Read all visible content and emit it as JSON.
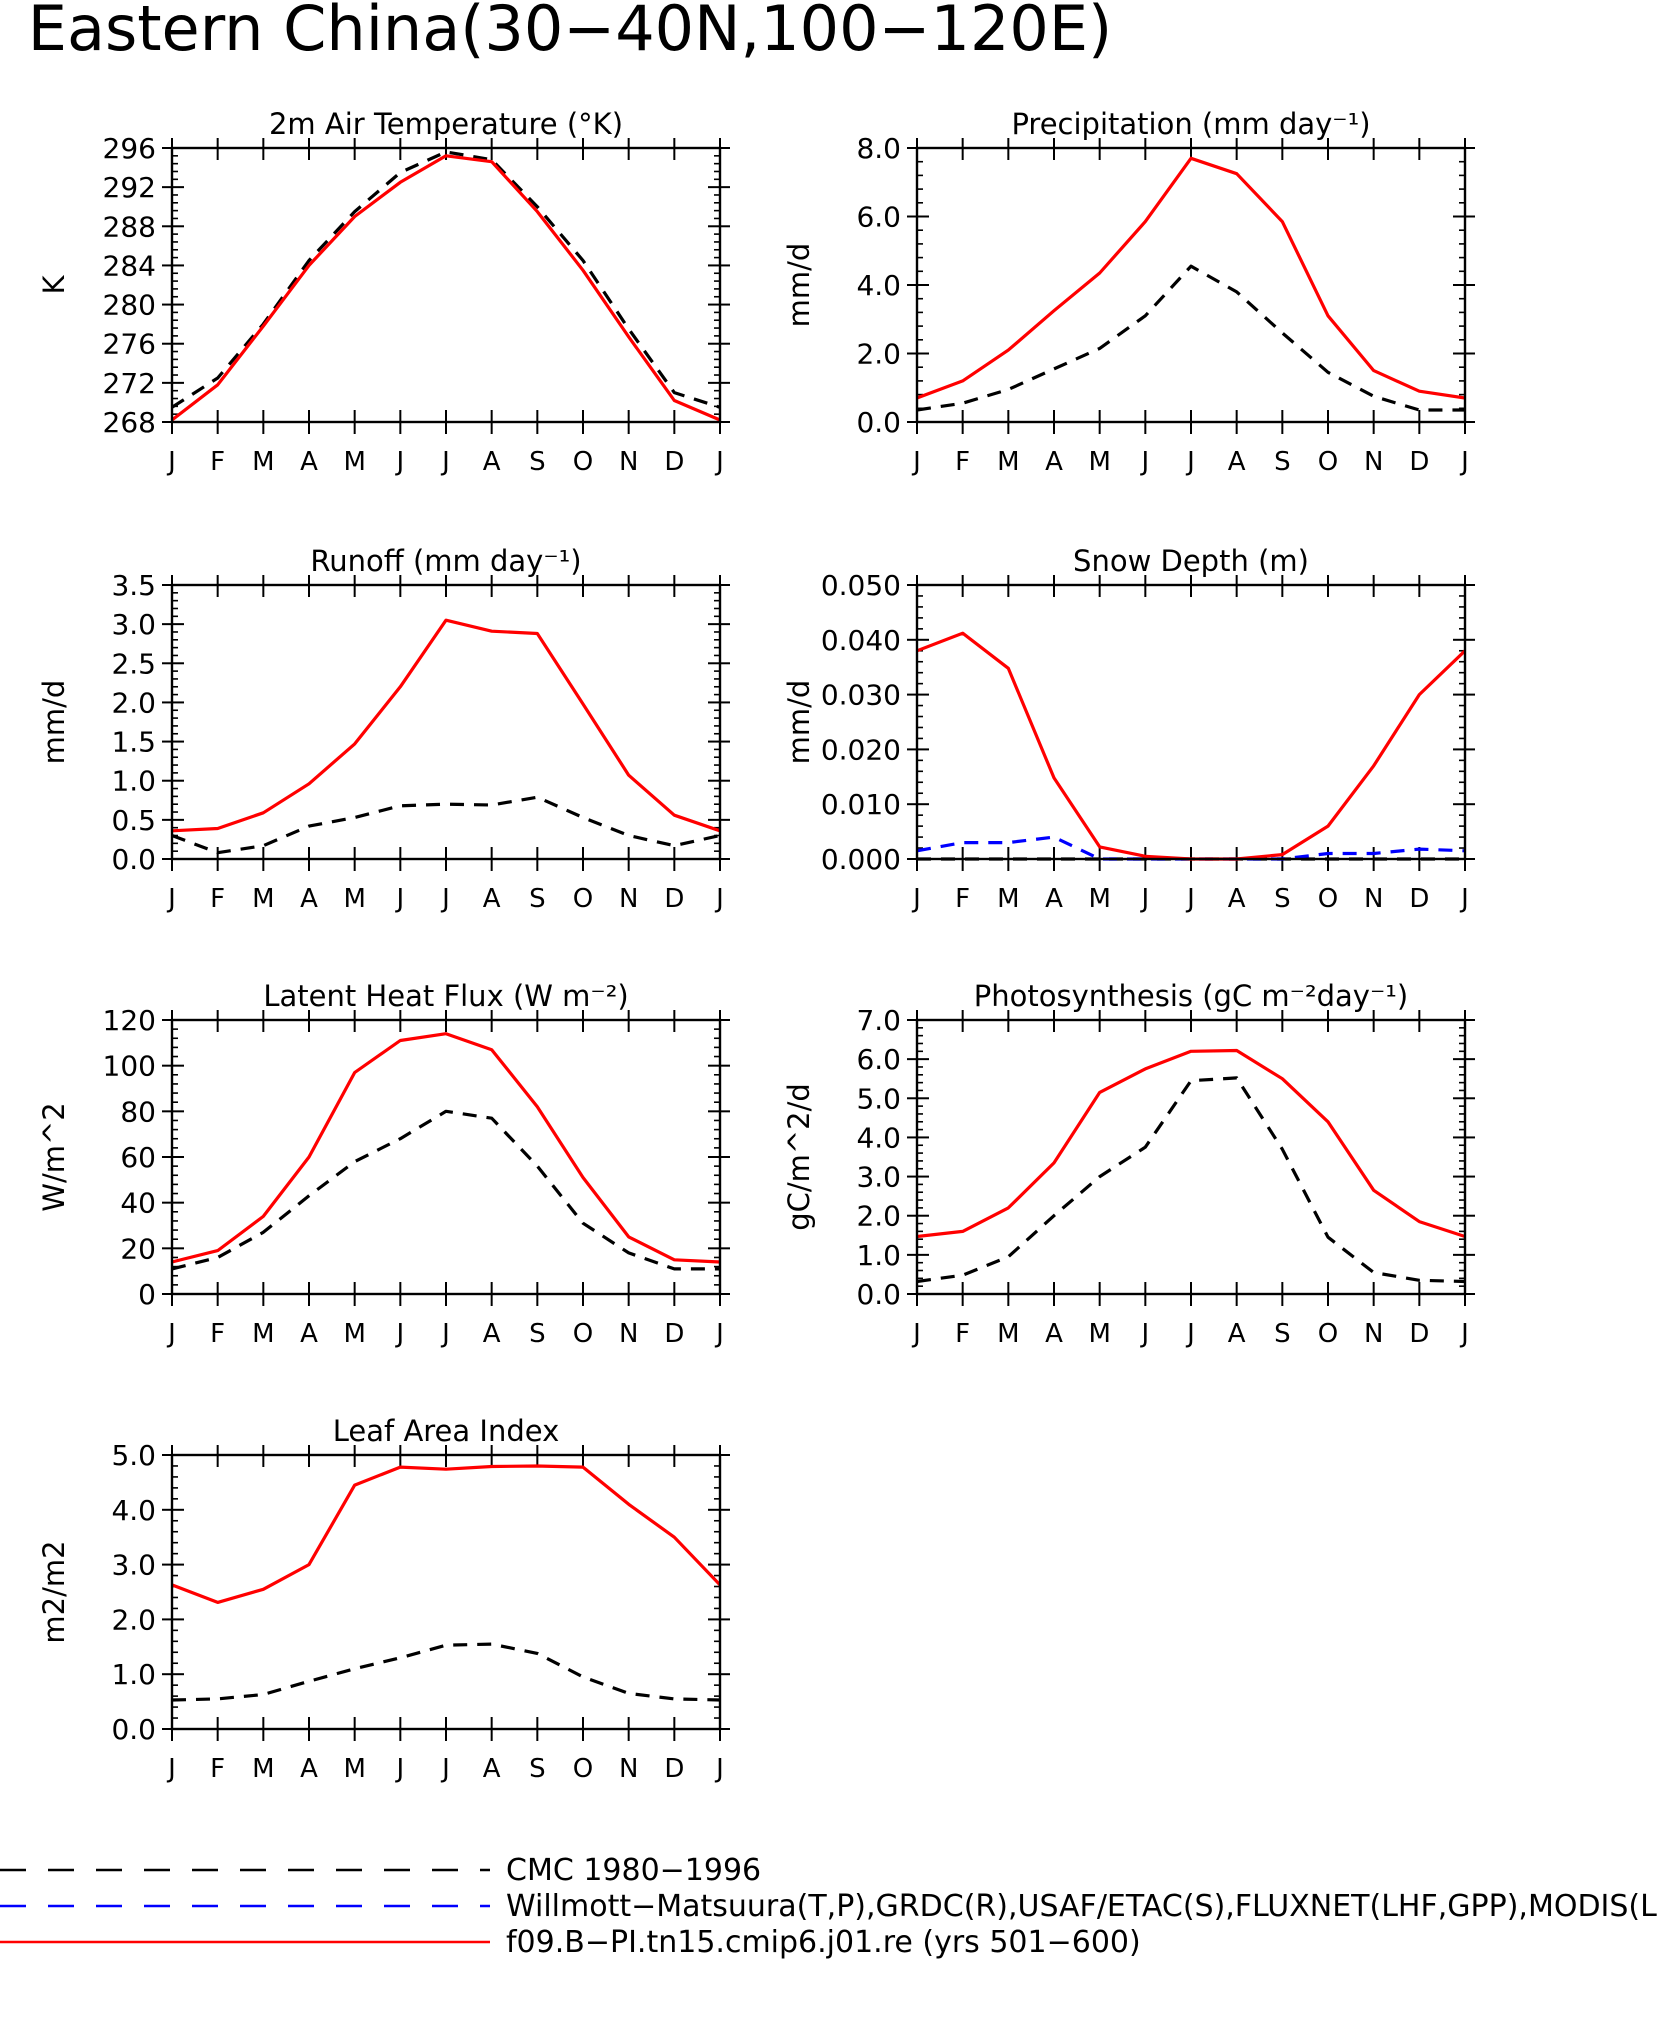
{
  "figure_title": "Eastern China(30−40N,100−120E)",
  "months": [
    "J",
    "F",
    "M",
    "A",
    "M",
    "J",
    "J",
    "A",
    "S",
    "O",
    "N",
    "D",
    "J"
  ],
  "legend": [
    {
      "label": "CMC 1980−1996",
      "color": "#000000",
      "style": "dashed"
    },
    {
      "label": "Willmott−Matsuura(T,P),GRDC(R),USAF/ETAC(S),FLUXNET(LHF,GPP),MODIS(L",
      "color": "#0000ff",
      "style": "dashed"
    },
    {
      "label": "f09.B−PI.tn15.cmip6.j01.re (yrs 501−600)",
      "color": "#ff0000",
      "style": "solid"
    }
  ],
  "colors": {
    "model": "#ff0000",
    "cmc": "#000000",
    "obs": "#0000ff"
  },
  "chart_data": [
    {
      "type": "line",
      "title": "2m Air Temperature (°K)",
      "ylabel": "K",
      "ylim": [
        268,
        296
      ],
      "yticks": [
        268,
        272,
        276,
        280,
        284,
        288,
        292,
        296
      ],
      "ytick_labels": [
        "268",
        "272",
        "276",
        "280",
        "284",
        "288",
        "292",
        "296"
      ],
      "x": [
        "J",
        "F",
        "M",
        "A",
        "M",
        "J",
        "J",
        "A",
        "S",
        "O",
        "N",
        "D",
        "J"
      ],
      "series": [
        {
          "name": "CMC 1980−1996",
          "style": "dashed",
          "color": "#000000",
          "values": [
            269.5,
            272.5,
            278.0,
            284.5,
            289.5,
            293.5,
            295.6,
            294.8,
            290.0,
            284.5,
            277.5,
            271.0,
            269.5
          ]
        },
        {
          "name": "f09.B−PI.tn15.cmip6.j01.re (yrs 501−600)",
          "style": "solid",
          "color": "#ff0000",
          "values": [
            268.2,
            271.8,
            277.8,
            284.0,
            289.0,
            292.5,
            295.2,
            294.6,
            289.5,
            283.5,
            276.7,
            270.2,
            268.2
          ]
        }
      ]
    },
    {
      "type": "line",
      "title": "Precipitation (mm day⁻¹)",
      "ylabel": "mm/d",
      "ylim": [
        0,
        8
      ],
      "yticks": [
        0,
        2,
        4,
        6,
        8
      ],
      "ytick_labels": [
        "0.0",
        "2.0",
        "4.0",
        "6.0",
        "8.0"
      ],
      "x": [
        "J",
        "F",
        "M",
        "A",
        "M",
        "J",
        "J",
        "A",
        "S",
        "O",
        "N",
        "D",
        "J"
      ],
      "series": [
        {
          "name": "CMC 1980−1996",
          "style": "dashed",
          "color": "#000000",
          "values": [
            0.35,
            0.55,
            0.95,
            1.55,
            2.15,
            3.1,
            4.55,
            3.8,
            2.6,
            1.45,
            0.75,
            0.35,
            0.35
          ]
        },
        {
          "name": "f09.B−PI.tn15.cmip6.j01.re (yrs 501−600)",
          "style": "solid",
          "color": "#ff0000",
          "values": [
            0.7,
            1.2,
            2.1,
            3.25,
            4.35,
            5.85,
            7.7,
            7.25,
            5.85,
            3.1,
            1.5,
            0.9,
            0.7
          ]
        }
      ]
    },
    {
      "type": "line",
      "title": "Runoff (mm day⁻¹)",
      "ylabel": "mm/d",
      "ylim": [
        0,
        3.5
      ],
      "yticks": [
        0,
        0.5,
        1.0,
        1.5,
        2.0,
        2.5,
        3.0,
        3.5
      ],
      "ytick_labels": [
        "0.0",
        "0.5",
        "1.0",
        "1.5",
        "2.0",
        "2.5",
        "3.0",
        "3.5"
      ],
      "x": [
        "J",
        "F",
        "M",
        "A",
        "M",
        "J",
        "J",
        "A",
        "S",
        "O",
        "N",
        "D",
        "J"
      ],
      "series": [
        {
          "name": "CMC 1980−1996",
          "style": "dashed",
          "color": "#000000",
          "values": [
            0.3,
            0.08,
            0.17,
            0.42,
            0.53,
            0.68,
            0.7,
            0.69,
            0.79,
            0.53,
            0.3,
            0.17,
            0.3
          ]
        },
        {
          "name": "f09.B−PI.tn15.cmip6.j01.re (yrs 501−600)",
          "style": "solid",
          "color": "#ff0000",
          "values": [
            0.36,
            0.39,
            0.59,
            0.96,
            1.47,
            2.2,
            3.05,
            2.91,
            2.88,
            1.98,
            1.07,
            0.56,
            0.36
          ]
        }
      ]
    },
    {
      "type": "line",
      "title": "Snow Depth (m)",
      "ylabel": "mm/d",
      "ylim": [
        0,
        0.05
      ],
      "yticks": [
        0,
        0.01,
        0.02,
        0.03,
        0.04,
        0.05
      ],
      "ytick_labels": [
        "0.000",
        "0.010",
        "0.020",
        "0.030",
        "0.040",
        "0.050"
      ],
      "x": [
        "J",
        "F",
        "M",
        "A",
        "M",
        "J",
        "J",
        "A",
        "S",
        "O",
        "N",
        "D",
        "J"
      ],
      "series": [
        {
          "name": "CMC 1980−1996",
          "style": "dashed",
          "color": "#000000",
          "values": [
            0,
            0,
            0,
            0,
            0,
            0,
            0,
            0,
            0,
            0,
            0,
            0,
            0
          ]
        },
        {
          "name": "Willmott−Matsuura(T,P),GRDC(R),USAF/ETAC(S),FLUXNET(LHF,GPP),MODIS(L",
          "style": "dashed",
          "color": "#0000ff",
          "values": [
            0.0015,
            0.003,
            0.003,
            0.004,
            0,
            0,
            0,
            0,
            0,
            0.001,
            0.001,
            0.0018,
            0.0015
          ]
        },
        {
          "name": "f09.B−PI.tn15.cmip6.j01.re (yrs 501−600)",
          "style": "solid",
          "color": "#ff0000",
          "values": [
            0.038,
            0.0412,
            0.0348,
            0.0148,
            0.0022,
            0.0005,
            0,
            0,
            0.0008,
            0.006,
            0.017,
            0.03,
            0.038
          ]
        }
      ]
    },
    {
      "type": "line",
      "title": "Latent Heat Flux (W m⁻²)",
      "ylabel": "W/m^2",
      "ylim": [
        0,
        120
      ],
      "yticks": [
        0,
        20,
        40,
        60,
        80,
        100,
        120
      ],
      "ytick_labels": [
        "0",
        "20",
        "40",
        "60",
        "80",
        "100",
        "120"
      ],
      "x": [
        "J",
        "F",
        "M",
        "A",
        "M",
        "J",
        "J",
        "A",
        "S",
        "O",
        "N",
        "D",
        "J"
      ],
      "series": [
        {
          "name": "CMC 1980−1996",
          "style": "dashed",
          "color": "#000000",
          "values": [
            11,
            16,
            27,
            43,
            58,
            68,
            80,
            77,
            56,
            31,
            18,
            11,
            11
          ]
        },
        {
          "name": "f09.B−PI.tn15.cmip6.j01.re (yrs 501−600)",
          "style": "solid",
          "color": "#ff0000",
          "values": [
            14,
            19,
            34,
            60,
            97,
            111,
            114,
            107,
            82,
            51,
            25,
            15,
            14
          ]
        }
      ]
    },
    {
      "type": "line",
      "title": "Photosynthesis (gC m⁻²day⁻¹)",
      "ylabel": "gC/m^2/d",
      "ylim": [
        0,
        7
      ],
      "yticks": [
        0,
        1,
        2,
        3,
        4,
        5,
        6,
        7
      ],
      "ytick_labels": [
        "0.0",
        "1.0",
        "2.0",
        "3.0",
        "4.0",
        "5.0",
        "6.0",
        "7.0"
      ],
      "x": [
        "J",
        "F",
        "M",
        "A",
        "M",
        "J",
        "J",
        "A",
        "S",
        "O",
        "N",
        "D",
        "J"
      ],
      "series": [
        {
          "name": "CMC 1980−1996",
          "style": "dashed",
          "color": "#000000",
          "values": [
            0.32,
            0.48,
            0.95,
            2.0,
            3.0,
            3.75,
            5.45,
            5.52,
            3.7,
            1.45,
            0.55,
            0.35,
            0.32
          ]
        },
        {
          "name": "f09.B−PI.tn15.cmip6.j01.re (yrs 501−600)",
          "style": "solid",
          "color": "#ff0000",
          "values": [
            1.47,
            1.6,
            2.2,
            3.35,
            5.15,
            5.75,
            6.2,
            6.22,
            5.5,
            4.4,
            2.65,
            1.85,
            1.47
          ]
        }
      ]
    },
    {
      "type": "line",
      "title": "Leaf Area Index",
      "ylabel": "m2/m2",
      "ylim": [
        0,
        5
      ],
      "yticks": [
        0,
        1,
        2,
        3,
        4,
        5
      ],
      "ytick_labels": [
        "0.0",
        "1.0",
        "2.0",
        "3.0",
        "4.0",
        "5.0"
      ],
      "x": [
        "J",
        "F",
        "M",
        "A",
        "M",
        "J",
        "J",
        "A",
        "S",
        "O",
        "N",
        "D",
        "J"
      ],
      "series": [
        {
          "name": "CMC 1980−1996",
          "style": "dashed",
          "color": "#000000",
          "values": [
            0.53,
            0.55,
            0.63,
            0.87,
            1.1,
            1.3,
            1.53,
            1.55,
            1.38,
            0.95,
            0.65,
            0.55,
            0.53
          ]
        },
        {
          "name": "f09.B−PI.tn15.cmip6.j01.re (yrs 501−600)",
          "style": "solid",
          "color": "#ff0000",
          "values": [
            2.63,
            2.31,
            2.55,
            3.0,
            4.45,
            4.78,
            4.74,
            4.79,
            4.8,
            4.78,
            4.1,
            3.5,
            2.63
          ]
        }
      ]
    }
  ]
}
